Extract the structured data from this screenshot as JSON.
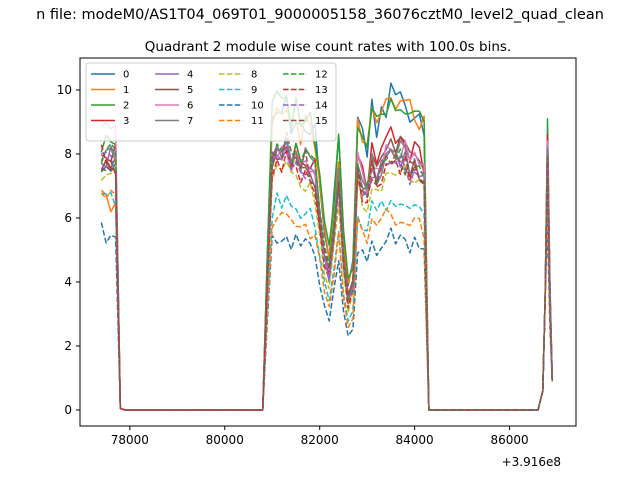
{
  "figure": {
    "suptitle": "n file: modeM0/AS1T04_069T01_9000005158_36076cztM0_level2_quad_clean",
    "subtitle": "Quadrant 2 module wise count rates with 100.0s bins.",
    "x_offset_label": "+3.916e8"
  },
  "chart_data": {
    "type": "line",
    "title": "Quadrant 2 module wise count rates with 100.0s bins.",
    "xlabel": "",
    "ylabel": "",
    "xlim": [
      76950,
      87400
    ],
    "ylim": [
      -0.5,
      11.0
    ],
    "x_offset": 391600000,
    "xticks": [
      78000,
      80000,
      82000,
      84000,
      86000
    ],
    "yticks": [
      0,
      2,
      4,
      6,
      8,
      10
    ],
    "grid": false,
    "legend_position": "upper-left",
    "legend_columns": 4,
    "segments": [
      {
        "x_start": 77400,
        "x_end": 77800,
        "x_step": 100
      },
      {
        "x_start": 77900,
        "x_end": 80700,
        "x_step": 100
      },
      {
        "x_start": 80800,
        "x_end": 84300,
        "x_step": 100
      },
      {
        "x_start": 84400,
        "x_end": 86600,
        "x_step": 100
      },
      {
        "x_start": 86700,
        "x_end": 86900,
        "x_step": 50
      }
    ],
    "series": [
      {
        "name": "0",
        "color": "#1f77b4",
        "dash": "solid",
        "levels": {
          "a": 8.0,
          "b": 9.0,
          "c": 9.5,
          "d": 8.5
        }
      },
      {
        "name": "1",
        "color": "#ff7f0e",
        "dash": "solid",
        "levels": {
          "a": 6.6,
          "b": 8.8,
          "c": 9.6,
          "d": 7.6
        }
      },
      {
        "name": "2",
        "color": "#2ca02c",
        "dash": "solid",
        "levels": {
          "a": 8.6,
          "b": 9.2,
          "c": 9.4,
          "d": 9.1
        }
      },
      {
        "name": "3",
        "color": "#d62728",
        "dash": "solid",
        "levels": {
          "a": 8.0,
          "b": 7.9,
          "c": 8.2,
          "d": 8.6
        }
      },
      {
        "name": "4",
        "color": "#9467bd",
        "dash": "solid",
        "levels": {
          "a": 7.9,
          "b": 7.6,
          "c": 7.8,
          "d": 8.3
        }
      },
      {
        "name": "5",
        "color": "#8c564b",
        "dash": "solid",
        "levels": {
          "a": 7.6,
          "b": 7.7,
          "c": 8.0,
          "d": 8.0
        }
      },
      {
        "name": "6",
        "color": "#e377c2",
        "dash": "solid",
        "levels": {
          "a": 8.8,
          "b": 7.8,
          "c": 8.1,
          "d": 8.4
        }
      },
      {
        "name": "7",
        "color": "#7f7f7f",
        "dash": "solid",
        "levels": {
          "a": 8.2,
          "b": 7.9,
          "c": 7.9,
          "d": 7.8
        }
      },
      {
        "name": "8",
        "color": "#bcbd22",
        "dash": "dashed",
        "levels": {
          "a": 7.4,
          "b": 7.1,
          "c": 7.3,
          "d": 7.9
        }
      },
      {
        "name": "9",
        "color": "#17becf",
        "dash": "dashed",
        "levels": {
          "a": 6.8,
          "b": 6.2,
          "c": 6.5,
          "d": 6.9
        }
      },
      {
        "name": "10",
        "color": "#1f77b4",
        "dash": "dashed",
        "levels": {
          "a": 5.6,
          "b": 5.2,
          "c": 5.3,
          "d": 5.8
        }
      },
      {
        "name": "11",
        "color": "#ff7f0e",
        "dash": "dashed",
        "levels": {
          "a": 6.6,
          "b": 5.8,
          "c": 6.0,
          "d": 6.4
        }
      },
      {
        "name": "12",
        "color": "#2ca02c",
        "dash": "dashed",
        "levels": {
          "a": 8.1,
          "b": 7.9,
          "c": 7.8,
          "d": 8.0
        }
      },
      {
        "name": "13",
        "color": "#d62728",
        "dash": "dashed",
        "levels": {
          "a": 7.9,
          "b": 7.4,
          "c": 7.6,
          "d": 8.1
        }
      },
      {
        "name": "14",
        "color": "#9467bd",
        "dash": "dashed",
        "levels": {
          "a": 7.8,
          "b": 7.5,
          "c": 7.6,
          "d": 8.2
        }
      },
      {
        "name": "15",
        "color": "#8c564b",
        "dash": "dashed",
        "levels": {
          "a": 7.7,
          "b": 7.7,
          "c": 7.7,
          "d": 7.9
        }
      }
    ]
  }
}
